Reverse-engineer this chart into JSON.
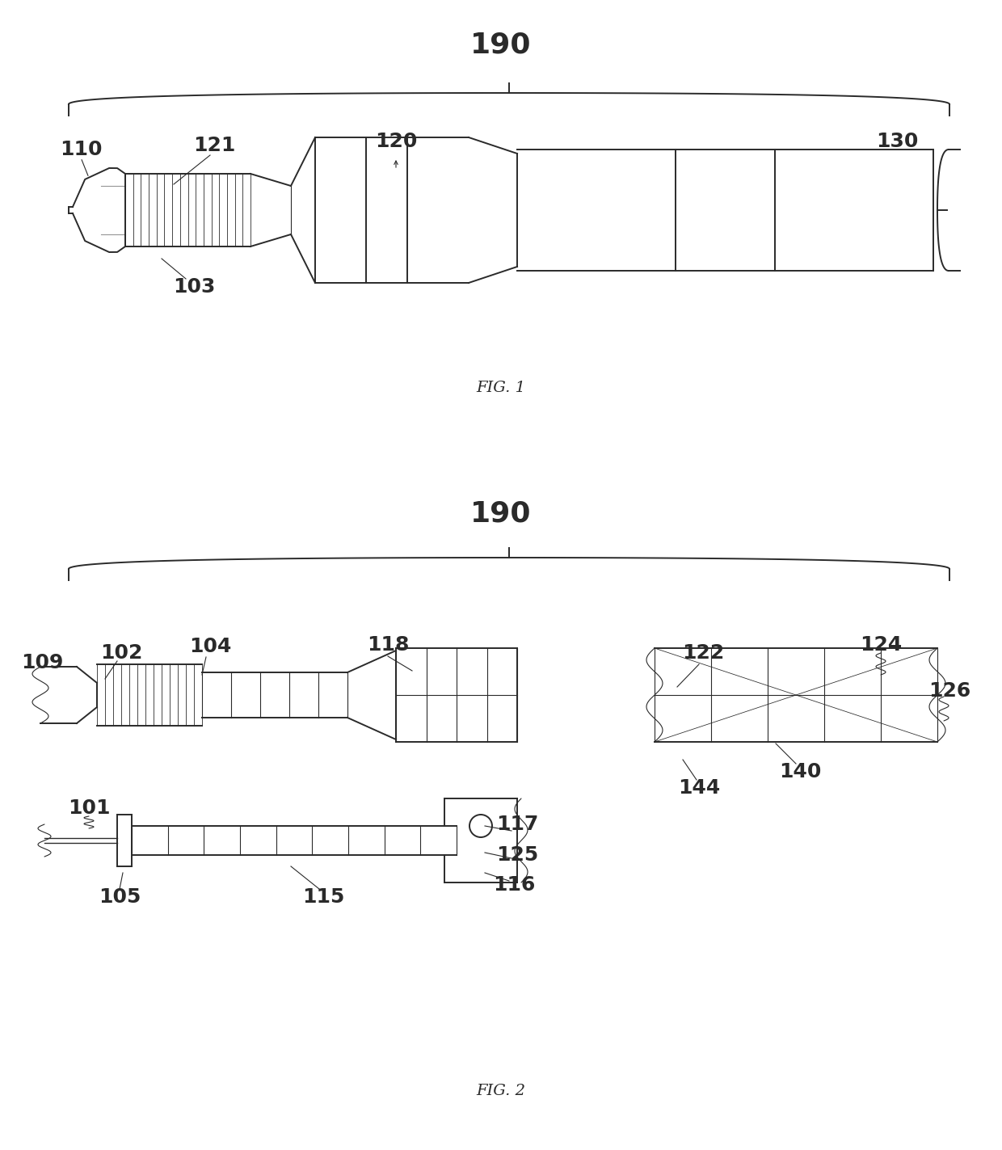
{
  "bg_color": "#ffffff",
  "line_color": "#2a2a2a",
  "fig1_caption": "FIG. 1",
  "fig2_caption": "FIG. 2",
  "lw_main": 1.4,
  "lw_thin": 0.8,
  "lw_rib": 0.6,
  "label_fs": 18,
  "caption_fs": 14
}
